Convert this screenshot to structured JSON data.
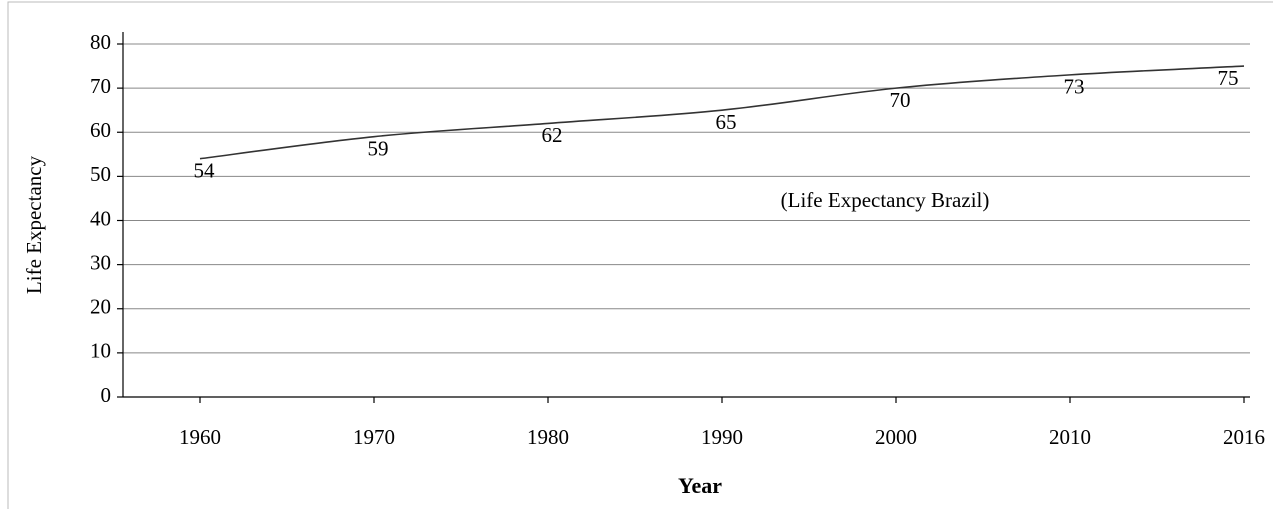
{
  "chart_data": {
    "type": "line",
    "x_label": "Year",
    "y_label": "Life Expectancy",
    "annotation": "(Life Expectancy Brazil)",
    "categories": [
      "1960",
      "1970",
      "1980",
      "1990",
      "2000",
      "2010",
      "2016"
    ],
    "series": [
      {
        "name": "Life Expectancy Brazil",
        "color": "#333333",
        "values": [
          54,
          59,
          62,
          65,
          70,
          73,
          75
        ]
      }
    ],
    "ylim": [
      0,
      80
    ],
    "yticks": [
      0,
      10,
      20,
      30,
      40,
      50,
      60,
      70,
      80
    ],
    "grid": true
  }
}
